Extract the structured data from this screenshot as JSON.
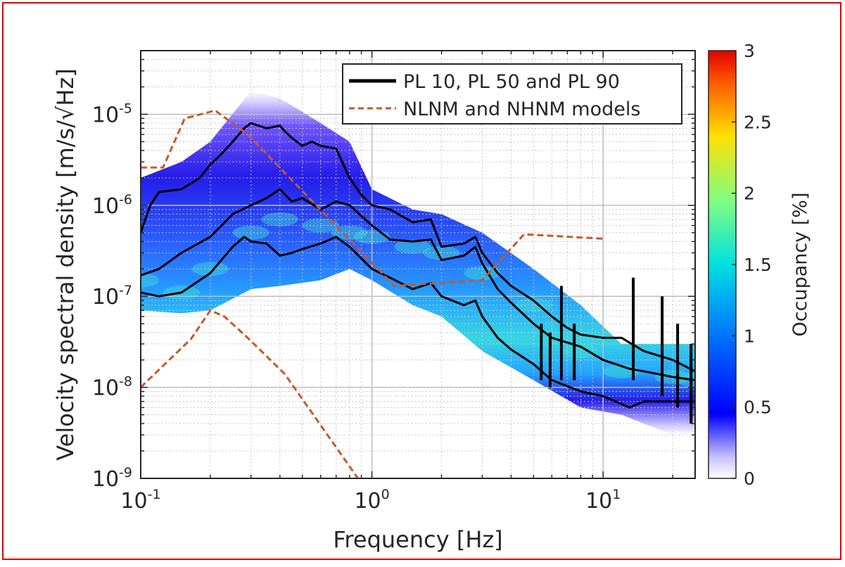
{
  "chart_data": {
    "type": "heatmap",
    "xscale": "log",
    "yscale": "log",
    "xlim": [
      0.1,
      25
    ],
    "ylim": [
      1e-09,
      5e-05
    ],
    "xlabel": "Frequency [Hz]",
    "ylabel": "Velocity spectral density [m/s/√Hz]",
    "x_ticks": [
      {
        "value": 0.1,
        "base": "10",
        "exp": "-1"
      },
      {
        "value": 1,
        "base": "10",
        "exp": "0"
      },
      {
        "value": 10,
        "base": "10",
        "exp": "1"
      }
    ],
    "y_ticks": [
      {
        "value": 1e-09,
        "base": "10",
        "exp": "-9"
      },
      {
        "value": 1e-08,
        "base": "10",
        "exp": "-8"
      },
      {
        "value": 1e-07,
        "base": "10",
        "exp": "-7"
      },
      {
        "value": 1e-06,
        "base": "10",
        "exp": "-6"
      },
      {
        "value": 1e-05,
        "base": "10",
        "exp": "-5"
      }
    ],
    "grid": true,
    "legend_position": "top-right",
    "colorbar": {
      "label": "Occupancy [%]",
      "range": [
        0,
        3
      ],
      "ticks": [
        "0",
        "0.5",
        "1",
        "1.5",
        "2",
        "2.5",
        "3"
      ],
      "colormap": "jet with white at zero"
    },
    "density_band": {
      "x": [
        0.1,
        0.15,
        0.2,
        0.3,
        0.4,
        0.6,
        0.8,
        1.0,
        1.5,
        2.0,
        3.0,
        5.0,
        8.0,
        12.0,
        20.0,
        25.0
      ],
      "y_low": [
        7e-08,
        6.5e-08,
        7e-08,
        1.2e-07,
        1.3e-07,
        1.5e-07,
        2e-07,
        1.5e-07,
        8e-08,
        6e-08,
        2.5e-08,
        1.2e-08,
        6e-09,
        5e-09,
        3e-09,
        3e-09
      ],
      "y_high": [
        2e-06,
        3e-06,
        5e-06,
        1.8e-05,
        1.5e-05,
        8e-06,
        5e-06,
        1.5e-06,
        9e-07,
        8e-07,
        5e-07,
        2e-07,
        8e-08,
        3e-08,
        3e-08,
        3e-08
      ],
      "y_peak": [
        1.5e-07,
        1.1e-07,
        2e-07,
        5e-07,
        7e-07,
        6e-07,
        5e-07,
        4.5e-07,
        3.5e-07,
        3e-07,
        1.8e-07,
        8e-08,
        2.5e-08,
        1.5e-08,
        1.3e-08,
        1.2e-08
      ]
    },
    "series": [
      {
        "name": "PL 10, PL 50 and PL 90",
        "color": "#000000",
        "style": "solid",
        "lines": [
          {
            "label": "PL 90",
            "x": [
              0.1,
              0.11,
              0.12,
              0.15,
              0.18,
              0.2,
              0.22,
              0.25,
              0.28,
              0.3,
              0.35,
              0.4,
              0.42,
              0.45,
              0.5,
              0.55,
              0.6,
              0.7,
              0.8,
              0.9,
              1.0,
              1.2,
              1.5,
              1.8,
              2.0,
              2.5,
              2.8,
              3.0,
              3.5,
              4.0,
              5.0,
              6.0,
              7.0,
              8.0,
              10.0,
              12.0,
              15.0,
              20.0,
              25.0
            ],
            "y": [
              5e-07,
              1e-06,
              1.4e-06,
              1.5e-06,
              2e-06,
              2.8e-06,
              3.5e-06,
              5e-06,
              7e-06,
              8e-06,
              7e-06,
              7.5e-06,
              6.5e-06,
              5.5e-06,
              4.5e-06,
              5e-06,
              4.5e-06,
              4.2e-06,
              2e-06,
              1.3e-06,
              1e-06,
              9e-07,
              6.5e-07,
              7e-07,
              3.5e-07,
              3.8e-07,
              4.5e-07,
              3e-07,
              1.8e-07,
              1.3e-07,
              9e-08,
              6e-08,
              4.5e-08,
              3.8e-08,
              3.5e-08,
              3.5e-08,
              2.5e-08,
              2e-08,
              1.5e-08
            ]
          },
          {
            "label": "PL 50",
            "x": [
              0.1,
              0.12,
              0.15,
              0.2,
              0.25,
              0.3,
              0.35,
              0.4,
              0.45,
              0.5,
              0.6,
              0.7,
              0.8,
              1.0,
              1.2,
              1.5,
              1.8,
              2.0,
              2.5,
              2.8,
              3.0,
              3.5,
              4.0,
              5.0,
              6.0,
              8.0,
              10.0,
              13.0,
              15.0,
              20.0,
              25.0
            ],
            "y": [
              1.7e-07,
              2e-07,
              3e-07,
              4.5e-07,
              8e-07,
              1e-06,
              1.2e-06,
              1.5e-06,
              1.1e-06,
              1.2e-06,
              9e-07,
              1.1e-06,
              1e-06,
              6e-07,
              4.2e-07,
              4e-07,
              4.2e-07,
              2.5e-07,
              2.8e-07,
              3.5e-07,
              2.3e-07,
              1.2e-07,
              8.5e-08,
              5e-08,
              3.5e-08,
              2.8e-08,
              2e-08,
              1.6e-08,
              1.5e-08,
              1.3e-08,
              1.2e-08
            ]
          },
          {
            "label": "PL 10",
            "x": [
              0.1,
              0.12,
              0.15,
              0.2,
              0.25,
              0.28,
              0.3,
              0.35,
              0.4,
              0.45,
              0.5,
              0.6,
              0.7,
              0.8,
              0.9,
              1.0,
              1.2,
              1.5,
              1.8,
              2.0,
              2.5,
              2.8,
              3.0,
              3.5,
              4.0,
              5.0,
              6.0,
              8.0,
              10.0,
              13.0,
              15.0,
              20.0,
              25.0
            ],
            "y": [
              1.1e-07,
              1e-07,
              1.1e-07,
              1.8e-07,
              3.5e-07,
              4.5e-07,
              4e-07,
              3.8e-07,
              2.8e-07,
              3e-07,
              3.3e-07,
              3.8e-07,
              4.5e-07,
              3.5e-07,
              2.6e-07,
              2e-07,
              1.6e-07,
              1.2e-07,
              1.4e-07,
              1e-07,
              8e-08,
              9e-08,
              6e-08,
              3.5e-08,
              2.6e-08,
              1.8e-08,
              1.2e-08,
              9e-09,
              8e-09,
              6e-09,
              7e-09,
              7e-09,
              7e-09
            ]
          }
        ]
      },
      {
        "name": "NLNM and NHNM models",
        "color": "#c8582a",
        "style": "dashed",
        "lines": [
          {
            "label": "NHNM",
            "x": [
              0.1,
              0.125,
              0.155,
              0.21,
              0.29,
              1.25,
              3.0,
              4.55,
              10.0
            ],
            "y": [
              2.6e-06,
              2.6e-06,
              9e-06,
              1.1e-05,
              6e-06,
              1.3e-07,
              1.5e-07,
              4.8e-07,
              4.3e-07
            ]
          },
          {
            "label": "NLNM",
            "x": [
              0.1,
              0.165,
              0.2,
              0.23,
              0.29,
              0.42,
              0.87
            ],
            "y": [
              1e-08,
              3.4e-08,
              7e-08,
              6e-08,
              3.5e-08,
              1.4e-08,
              1e-09
            ]
          }
        ]
      }
    ],
    "spikes": [
      {
        "x": 5.4,
        "top": 5e-08,
        "bottom": 1.2e-08
      },
      {
        "x": 5.9,
        "top": 4e-08,
        "bottom": 1e-08
      },
      {
        "x": 6.6,
        "top": 1.3e-07,
        "bottom": 1.2e-08
      },
      {
        "x": 7.5,
        "top": 5e-08,
        "bottom": 1.2e-08
      },
      {
        "x": 13.5,
        "top": 1.6e-07,
        "bottom": 1.2e-08
      },
      {
        "x": 18.0,
        "top": 1e-07,
        "bottom": 8e-09
      },
      {
        "x": 21.0,
        "top": 5e-08,
        "bottom": 6e-09
      },
      {
        "x": 24.0,
        "top": 3e-08,
        "bottom": 4e-09
      }
    ]
  }
}
